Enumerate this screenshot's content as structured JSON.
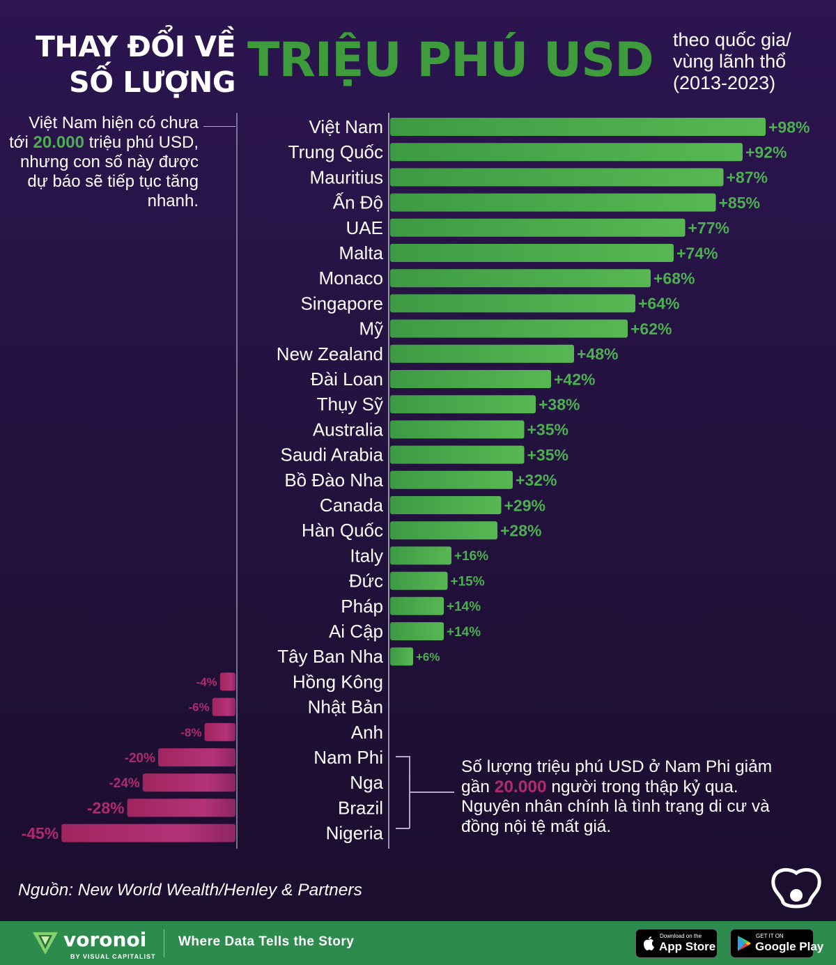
{
  "header": {
    "title_line1": "THAY ĐỔI VỀ",
    "title_line2": "SỐ LƯỢNG",
    "title_main": "TRIỆU PHÚ USD",
    "subtitle_line1": "theo quốc gia/",
    "subtitle_line2": "vùng lãnh thổ",
    "subtitle_line3": "(2013-2023)"
  },
  "note_left": {
    "before": "Việt Nam hiện có chưa tới ",
    "highlight": "20.000",
    "after": " triệu phú USD, nhưng con số này được dự báo sẽ tiếp tục tăng nhanh."
  },
  "note_right": {
    "before": "Số lượng triệu phú USD ở Nam Phi giảm gần ",
    "highlight": "20.000",
    "after": " người trong thập kỷ qua. Nguyên nhân chính là tình trạng di cư và đồng nội tệ mất giá."
  },
  "source": "Nguồn: New World Wealth/Henley & Partners",
  "footer": {
    "brand": "voronoi",
    "brand_sub": "BY VISUAL CAPITALIST",
    "tagline": "Where Data Tells the Story",
    "appstore_small": "Download on the",
    "appstore_big": "App Store",
    "googleplay_small": "GET IT ON",
    "googleplay_big": "Google Play"
  },
  "colors": {
    "positive": "#4caf50",
    "negative": "#b02a6e",
    "title_green": "#3f9c3c",
    "background": "#2c1550",
    "footer": "#2e8b4e"
  },
  "chart_data": {
    "type": "bar",
    "orientation": "horizontal",
    "categories": [
      "Việt Nam",
      "Trung Quốc",
      "Mauritius",
      "Ấn Độ",
      "UAE",
      "Malta",
      "Monaco",
      "Singapore",
      "Mỹ",
      "New Zealand",
      "Đài Loan",
      "Thụy Sỹ",
      "Australia",
      "Saudi Arabia",
      "Bồ Đào Nha",
      "Canada",
      "Hàn Quốc",
      "Italy",
      "Đức",
      "Pháp",
      "Ai Cập",
      "Tây Ban Nha",
      "Hồng Kông",
      "Nhật Bản",
      "Anh",
      "Nam Phi",
      "Nga",
      "Brazil",
      "Nigeria"
    ],
    "values": [
      98,
      92,
      87,
      85,
      77,
      74,
      68,
      64,
      62,
      48,
      42,
      38,
      35,
      35,
      32,
      29,
      28,
      16,
      15,
      14,
      14,
      6,
      -4,
      -6,
      -8,
      -20,
      -24,
      -28,
      -45
    ],
    "value_labels": [
      "+98%",
      "+92%",
      "+87%",
      "+85%",
      "+77%",
      "+74%",
      "+68%",
      "+64%",
      "+62%",
      "+48%",
      "+42%",
      "+38%",
      "+35%",
      "+35%",
      "+32%",
      "+29%",
      "+28%",
      "+16%",
      "+15%",
      "+14%",
      "+14%",
      "+6%",
      "-4%",
      "-6%",
      "-8%",
      "-20%",
      "-24%",
      "-28%",
      "-45%"
    ],
    "unit": "%"
  }
}
